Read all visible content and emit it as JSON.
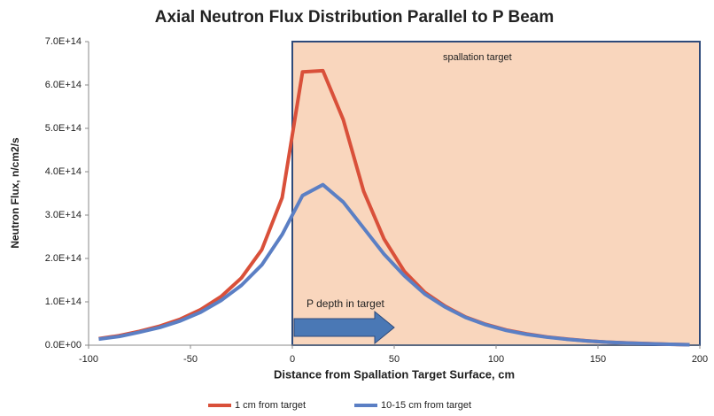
{
  "chart_data": {
    "type": "line",
    "title": "Axial Neutron Flux Distribution Parallel to P Beam",
    "x_label": "Distance from Spallation Target Surface, cm",
    "y_label": "Neutron Flux, n/cm2/s",
    "x": [
      -95,
      -85,
      -75,
      -65,
      -55,
      -45,
      -35,
      -25,
      -15,
      -5,
      5,
      15,
      25,
      35,
      45,
      55,
      65,
      75,
      85,
      95,
      105,
      115,
      125,
      135,
      145,
      155,
      165,
      175,
      185,
      195
    ],
    "series": [
      {
        "name": "1 cm from target",
        "color": "#d9503a",
        "values": [
          15000000000000.0,
          22000000000000.0,
          32000000000000.0,
          44000000000000.0,
          60000000000000.0,
          82000000000000.0,
          112000000000000.0,
          155000000000000.0,
          220000000000000.0,
          340000000000000.0,
          630000000000000.0,
          633000000000000.0,
          520000000000000.0,
          355000000000000.0,
          245000000000000.0,
          170000000000000.0,
          122000000000000.0,
          90000000000000.0,
          65000000000000.0,
          48000000000000.0,
          35000000000000.0,
          26000000000000.0,
          19000000000000.0,
          14000000000000.0,
          10000000000000.0,
          7000000000000.0,
          5000000000000.0,
          3500000000000.0,
          2000000000000.0,
          1000000000000.0
        ]
      },
      {
        "name": "10-15 cm from target",
        "color": "#5b7fc4",
        "values": [
          14000000000000.0,
          20000000000000.0,
          30000000000000.0,
          41000000000000.0,
          56000000000000.0,
          76000000000000.0,
          103000000000000.0,
          138000000000000.0,
          185000000000000.0,
          255000000000000.0,
          345000000000000.0,
          370000000000000.0,
          330000000000000.0,
          270000000000000.0,
          210000000000000.0,
          160000000000000.0,
          118000000000000.0,
          88000000000000.0,
          64000000000000.0,
          47000000000000.0,
          34000000000000.0,
          25000000000000.0,
          18500000000000.0,
          13500000000000.0,
          9800000000000.0,
          6900000000000.0,
          4900000000000.0,
          3400000000000.0,
          2000000000000.0,
          1000000000000.0
        ]
      }
    ],
    "xlim": [
      -100,
      200
    ],
    "xticks": [
      -100,
      -50,
      0,
      50,
      100,
      150,
      200
    ],
    "ylim": [
      0,
      700000000000000.0
    ],
    "yticks": [
      {
        "value": 0,
        "label": "0.0E+00"
      },
      {
        "value": 100000000000000.0,
        "label": "1.0E+14"
      },
      {
        "value": 200000000000000.0,
        "label": "2.0E+14"
      },
      {
        "value": 300000000000000.0,
        "label": "3.0E+14"
      },
      {
        "value": 400000000000000.0,
        "label": "4.0E+14"
      },
      {
        "value": 500000000000000.0,
        "label": "5.0E+14"
      },
      {
        "value": 600000000000000.0,
        "label": "6.0E+14"
      },
      {
        "value": 700000000000000.0,
        "label": "7.0E+14"
      }
    ],
    "shaded_region": {
      "x": [
        0,
        200
      ],
      "label": "spallation target",
      "color": "#f9d6bd"
    },
    "arrow": {
      "x": [
        0,
        50
      ],
      "label": "P depth in target",
      "color": "#4a78b5"
    },
    "legend": "bottom"
  }
}
